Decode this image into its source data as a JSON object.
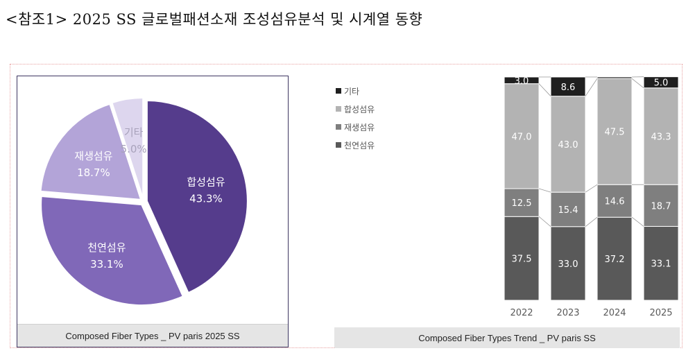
{
  "title": "<참조1> 2025 SS 글로벌패션소재 조성섬유분석 및 시계열 동향",
  "chart_data": [
    {
      "type": "pie",
      "caption": "Composed Fiber Types _ PV paris 2025 SS",
      "slices": [
        {
          "label": "합성섬유",
          "value": 43.3,
          "display": "43.3%",
          "color": "#553c8c"
        },
        {
          "label": "천연섬유",
          "value": 33.1,
          "display": "33.1%",
          "color": "#8068b8"
        },
        {
          "label": "재생섬유",
          "value": 18.7,
          "display": "18.7%",
          "color": "#b3a4d8"
        },
        {
          "label": "기타",
          "value": 5.0,
          "display": "5.0%",
          "color": "#ddd6ee"
        }
      ]
    },
    {
      "type": "bar",
      "stacked": true,
      "caption": "Composed Fiber Types Trend _ PV paris  SS",
      "categories": [
        "2022",
        "2023",
        "2024",
        "2025"
      ],
      "legend": [
        "기타",
        "합성섬유",
        "재생섬유",
        "천연섬유"
      ],
      "legend_position": "left",
      "series": [
        {
          "name": "천연섬유",
          "values": [
            37.5,
            33.0,
            37.2,
            33.1
          ],
          "labels": [
            "37.5",
            "33.0",
            "37.2",
            "33.1"
          ],
          "color": "#595959"
        },
        {
          "name": "재생섬유",
          "values": [
            12.5,
            15.4,
            14.6,
            18.7
          ],
          "labels": [
            "12.5",
            "15.4",
            "14.6",
            "18.7"
          ],
          "color": "#7f7f7f"
        },
        {
          "name": "합성섬유",
          "values": [
            47.0,
            43.0,
            47.5,
            43.3
          ],
          "labels": [
            "47.0",
            "43.0",
            "47.5",
            "43.3"
          ],
          "color": "#b3b3b3"
        },
        {
          "name": "기타",
          "values": [
            3.0,
            8.6,
            0.7,
            5.0
          ],
          "labels": [
            "3.0",
            "8.6",
            "",
            "5.0"
          ],
          "color": "#1f1f1f"
        }
      ],
      "ylim": [
        0,
        100
      ]
    }
  ]
}
